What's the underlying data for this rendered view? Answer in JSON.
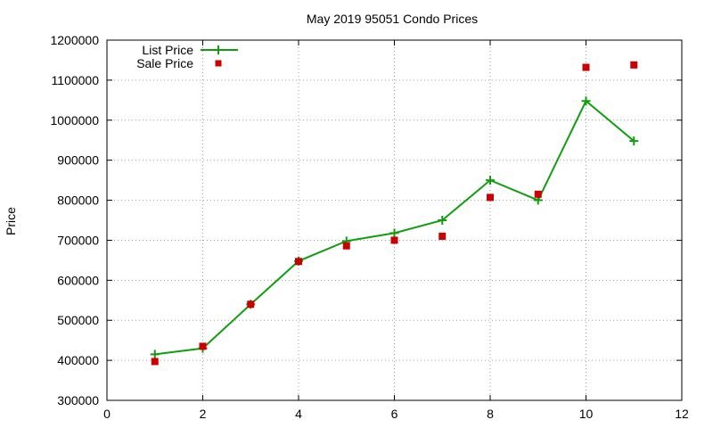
{
  "chart_data": {
    "type": "line",
    "title": "May 2019 95051 Condo Prices",
    "xlabel": "",
    "ylabel": "Price",
    "xlim": [
      0,
      12
    ],
    "ylim": [
      300000,
      1200000
    ],
    "x_ticks": [
      0,
      2,
      4,
      6,
      8,
      10,
      12
    ],
    "y_ticks": [
      300000,
      400000,
      500000,
      600000,
      700000,
      800000,
      900000,
      1000000,
      1100000,
      1200000
    ],
    "grid": true,
    "legend_position": "top-left",
    "series": [
      {
        "name": "List Price",
        "style": "line+plus-markers",
        "color": "#109e10",
        "points": [
          [
            1,
            415000
          ],
          [
            2,
            430000
          ],
          [
            3,
            540000
          ],
          [
            4,
            648000
          ],
          [
            5,
            698000
          ],
          [
            6,
            718000
          ],
          [
            7,
            750000
          ],
          [
            8,
            850000
          ],
          [
            9,
            800000
          ],
          [
            10,
            1048000
          ],
          [
            11,
            948000
          ]
        ]
      },
      {
        "name": "Sale Price",
        "style": "square-markers",
        "color": "#cc0000",
        "points": [
          [
            1,
            397000
          ],
          [
            2,
            435000
          ],
          [
            3,
            540000
          ],
          [
            4,
            647000
          ],
          [
            5,
            686000
          ],
          [
            6,
            700000
          ],
          [
            7,
            710000
          ],
          [
            8,
            807000
          ],
          [
            9,
            815000
          ],
          [
            10,
            1132000
          ],
          [
            11,
            1138000
          ]
        ]
      }
    ]
  }
}
